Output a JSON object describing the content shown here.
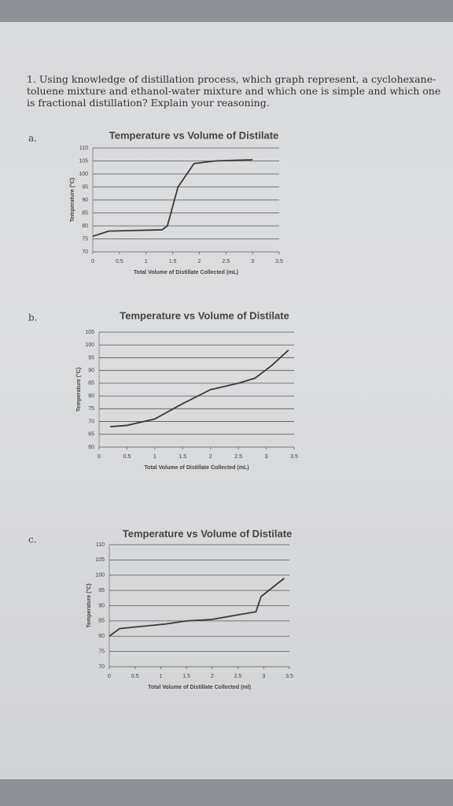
{
  "question": "1. Using knowledge of distillation process, which graph represent, a cyclohexane-toluene mixture and ethanol-water mixture and which one is simple and which one is fractional distillation? Explain your reasoning.",
  "chart_data": [
    {
      "label": "a.",
      "type": "line",
      "title": "Temperature vs Volume of Distilate",
      "xlabel": "Total Volume of Distillate Collected (mL)",
      "ylabel": "Temperature (°C)",
      "x": [
        0,
        0.3,
        1.3,
        1.4,
        1.6,
        1.8,
        1.9,
        2.3,
        3
      ],
      "series": [
        {
          "color": "#3a3a3a",
          "values": [
            76,
            78,
            78.5,
            80,
            95,
            101,
            104,
            105,
            105.5
          ]
        }
      ],
      "xlim": [
        0,
        3.5
      ],
      "xticks": [
        0,
        0.5,
        1,
        1.5,
        2,
        2.5,
        3,
        3.5
      ],
      "ylim": [
        70,
        110
      ],
      "yticks": [
        70,
        75,
        80,
        85,
        90,
        95,
        100,
        105,
        110
      ],
      "grid": true
    },
    {
      "label": "b.",
      "type": "line",
      "title": "Temperature vs Volume of Distilate",
      "xlabel": "Total Volume of Distillate Collected (mL)",
      "ylabel": "Temperature (°C)",
      "x": [
        0.2,
        0.5,
        1,
        1.5,
        2,
        2.5,
        2.8,
        3.1,
        3.4
      ],
      "series": [
        {
          "color": "#3a3a3a",
          "values": [
            68,
            68.5,
            71,
            77,
            82.5,
            85,
            87,
            92,
            98
          ]
        }
      ],
      "xlim": [
        0,
        3.5
      ],
      "xticks": [
        0,
        0.5,
        1,
        1.5,
        2,
        2.5,
        3,
        3.5
      ],
      "ylim": [
        60,
        105
      ],
      "yticks": [
        60,
        65,
        70,
        75,
        80,
        85,
        90,
        95,
        100,
        105
      ],
      "grid": true
    },
    {
      "label": "c.",
      "type": "line",
      "title": "Temperature vs Volume of Distilate",
      "xlabel": "Total Volume of Distillate Collected (ml)",
      "ylabel": "Temperature (°C)",
      "x": [
        0,
        0.2,
        0.5,
        1.1,
        1.5,
        2,
        2.5,
        2.85,
        2.95,
        3.1,
        3.4
      ],
      "series": [
        {
          "color": "#3a3a3a",
          "values": [
            80,
            82.5,
            83,
            84,
            85,
            85.5,
            87,
            88,
            93,
            95,
            99
          ]
        }
      ],
      "xlim": [
        0,
        3.5
      ],
      "xticks": [
        0,
        0.5,
        1,
        1.5,
        2,
        2.5,
        3,
        3.5
      ],
      "ylim": [
        70,
        110
      ],
      "yticks": [
        70,
        75,
        80,
        85,
        90,
        95,
        100,
        105,
        110
      ],
      "grid": true
    }
  ]
}
